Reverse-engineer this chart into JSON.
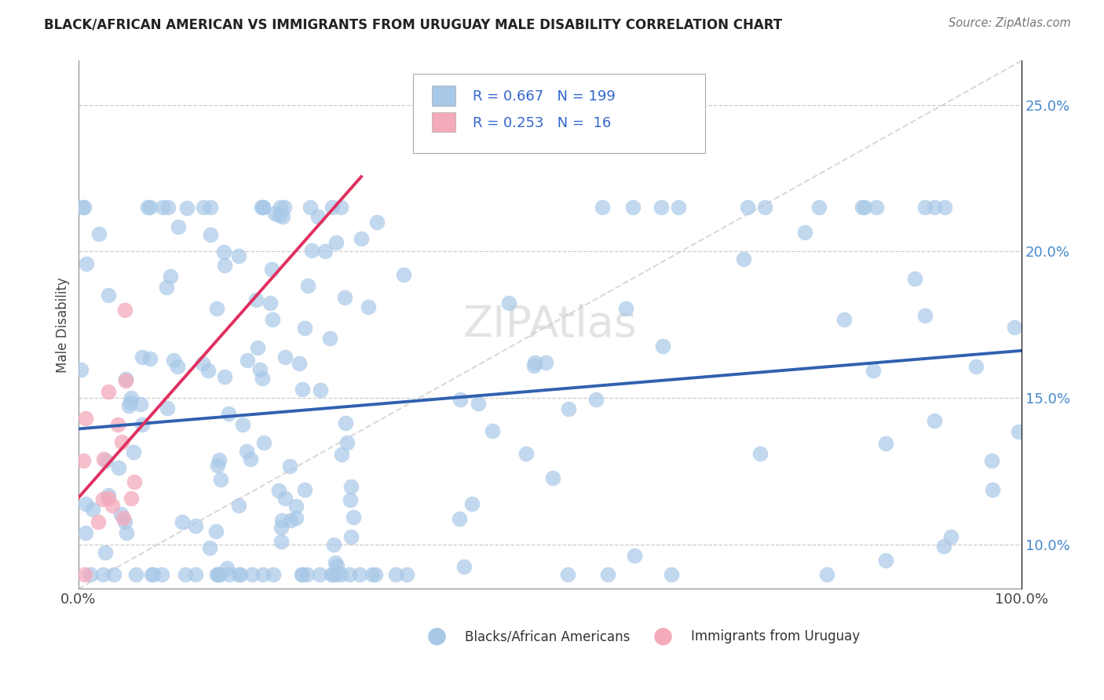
{
  "title": "BLACK/AFRICAN AMERICAN VS IMMIGRANTS FROM URUGUAY MALE DISABILITY CORRELATION CHART",
  "source": "Source: ZipAtlas.com",
  "ylabel": "Male Disability",
  "xlim": [
    0.0,
    1.0
  ],
  "ylim": [
    0.085,
    0.265
  ],
  "yticks": [
    0.1,
    0.15,
    0.2,
    0.25
  ],
  "xticks": [
    0.0,
    1.0
  ],
  "xticklabels": [
    "0.0%",
    "100.0%"
  ],
  "yticklabels": [
    "10.0%",
    "15.0%",
    "20.0%",
    "25.0%"
  ],
  "blue_R": 0.667,
  "blue_N": 199,
  "pink_R": 0.253,
  "pink_N": 16,
  "blue_color": "#a8c8e8",
  "pink_color": "#f4aabb",
  "blue_line_color": "#3060b0",
  "pink_line_color": "#e03060",
  "ref_line_color": "#d0d0d0",
  "legend_label_blue": "Blacks/African Americans",
  "legend_label_pink": "Immigrants from Uruguay",
  "watermark": "ZIPAtlas",
  "blue_seed": 12345,
  "pink_seed": 99
}
